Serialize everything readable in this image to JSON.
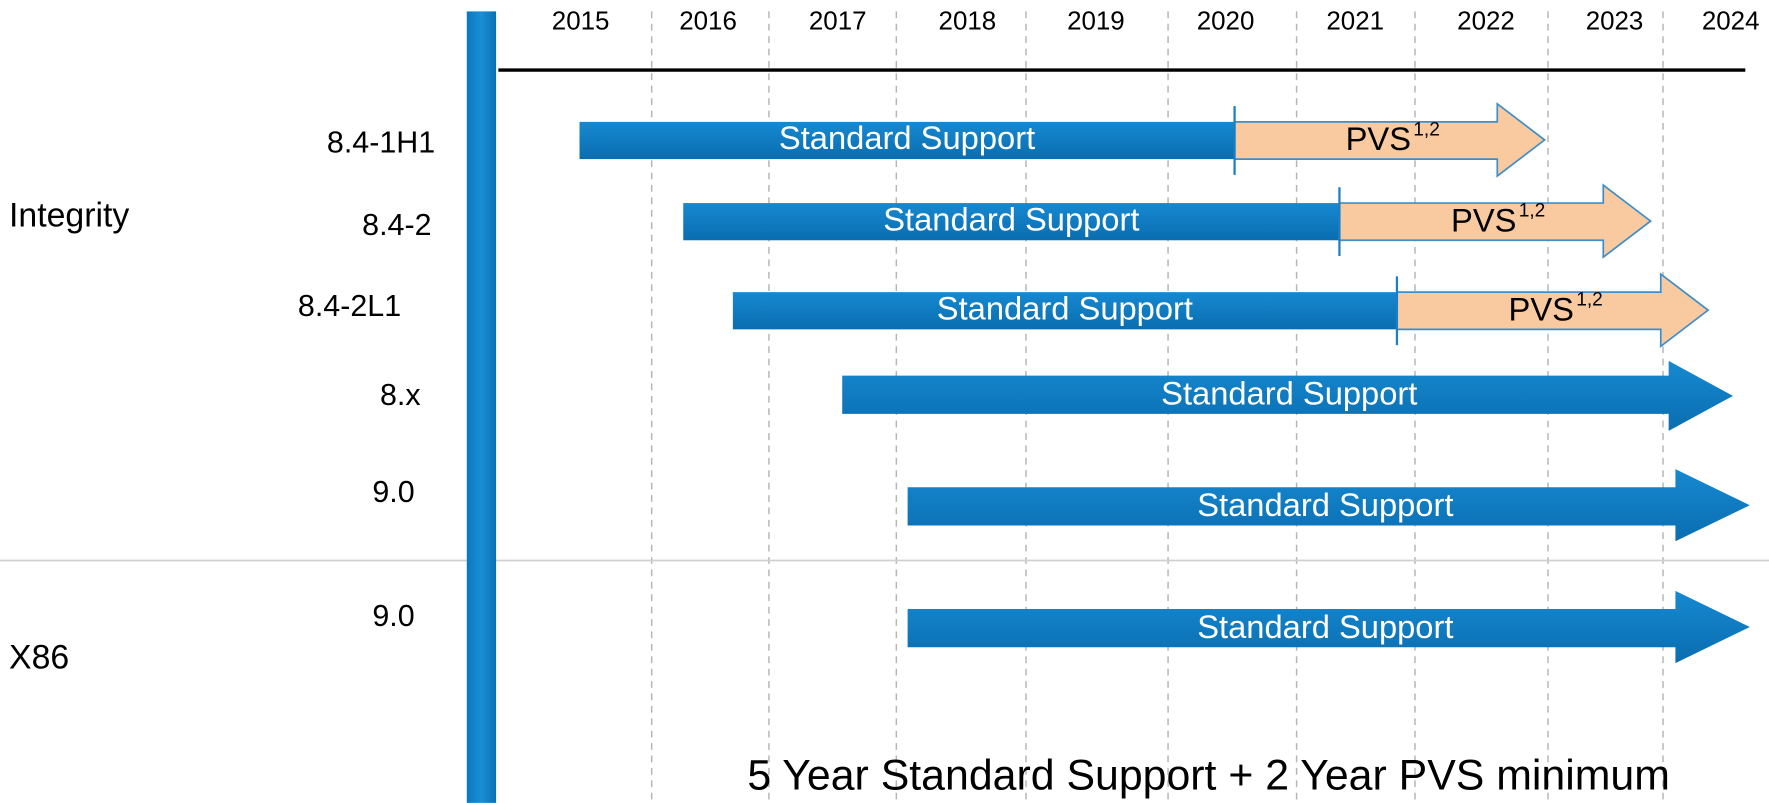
{
  "years": [
    "2015",
    "2016",
    "2017",
    "2018",
    "2019",
    "2020",
    "2021",
    "2022",
    "2023",
    "2024"
  ],
  "groups": [
    {
      "label": "Integrity"
    },
    {
      "label": "X86"
    }
  ],
  "rows": [
    {
      "label": "8.4-1H1",
      "standard": "Standard Support",
      "pvs": "PVS",
      "pvs_note": "1,2"
    },
    {
      "label": "8.4-2",
      "standard": "Standard Support",
      "pvs": "PVS",
      "pvs_note": "1,2"
    },
    {
      "label": "8.4-2L1",
      "standard": "Standard Support",
      "pvs": "PVS",
      "pvs_note": "1,2"
    },
    {
      "label": "8.x",
      "standard": "Standard Support"
    },
    {
      "label": "9.0",
      "standard": "Standard Support"
    },
    {
      "label": "9.0",
      "standard": "Standard Support"
    }
  ],
  "footer": "5 Year Standard Support + 2 Year PVS minimum"
}
